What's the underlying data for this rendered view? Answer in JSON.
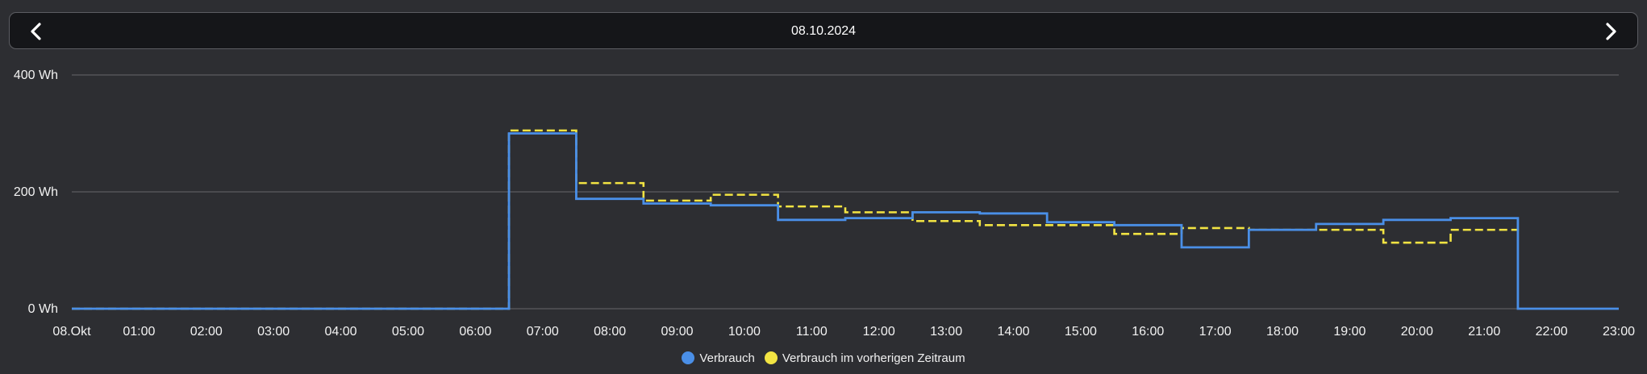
{
  "header": {
    "date": "08.10.2024",
    "prev_icon": "chevron-left-icon",
    "next_icon": "chevron-right-icon"
  },
  "chart_data": {
    "type": "line",
    "step": true,
    "title": "",
    "xlabel": "",
    "ylabel": "",
    "ylim": [
      0,
      400
    ],
    "y_ticks": [
      {
        "value": 0,
        "label": "0 Wh"
      },
      {
        "value": 200,
        "label": "200 Wh"
      },
      {
        "value": 400,
        "label": "400 Wh"
      }
    ],
    "grid": true,
    "legend_position": "bottom-center",
    "x_tick_labels": [
      "08.Okt",
      "01:00",
      "02:00",
      "03:00",
      "04:00",
      "05:00",
      "06:00",
      "07:00",
      "08:00",
      "09:00",
      "10:00",
      "11:00",
      "12:00",
      "13:00",
      "14:00",
      "15:00",
      "16:00",
      "17:00",
      "18:00",
      "19:00",
      "20:00",
      "21:00",
      "22:00",
      "23:00"
    ],
    "x_hours": [
      0,
      1,
      2,
      3,
      4,
      5,
      6,
      7,
      8,
      9,
      10,
      11,
      12,
      13,
      14,
      15,
      16,
      17,
      18,
      19,
      20,
      21,
      22,
      23
    ],
    "step_boundaries": [
      0,
      6.5,
      7.5,
      8.5,
      9.5,
      10.5,
      11.5,
      12.5,
      13.5,
      14.5,
      15.5,
      16.5,
      17.5,
      18.5,
      19.5,
      20.5,
      21.5,
      23
    ],
    "series": [
      {
        "name": "Verbrauch",
        "color": "#4a8fe7",
        "dashed": false,
        "values": [
          0,
          300,
          188,
          180,
          177,
          152,
          155,
          165,
          163,
          148,
          143,
          105,
          135,
          145,
          152,
          155,
          0
        ]
      },
      {
        "name": "Verbrauch im vorherigen Zeitraum",
        "color": "#f2e443",
        "dashed": true,
        "values": [
          0,
          305,
          215,
          185,
          195,
          175,
          165,
          150,
          143,
          143,
          128,
          138,
          135,
          135,
          113,
          135,
          null
        ]
      }
    ]
  },
  "colors": {
    "grid": "#5b5c60",
    "background": "#2d2e32"
  }
}
